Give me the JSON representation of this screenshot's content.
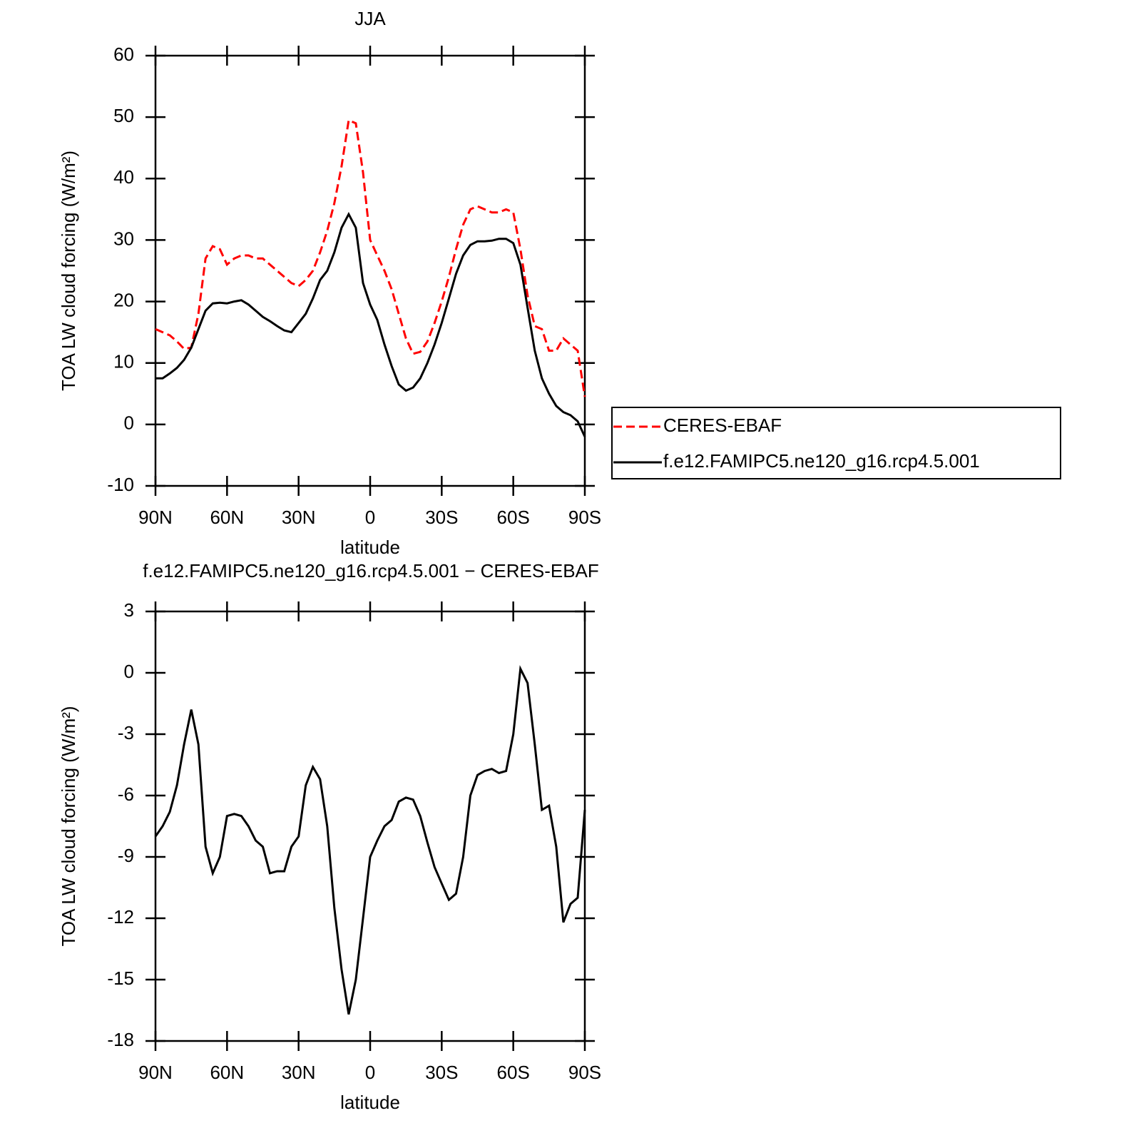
{
  "chart_data": [
    {
      "type": "line",
      "title": "JJA",
      "xlabel": "latitude",
      "ylabel": "TOA LW cloud forcing (W/m²)",
      "x": [
        90,
        87,
        84,
        81,
        78,
        75,
        72,
        69,
        66,
        63,
        60,
        57,
        54,
        51,
        48,
        45,
        42,
        39,
        36,
        33,
        30,
        27,
        24,
        21,
        18,
        15,
        12,
        9,
        6,
        3,
        0,
        -3,
        -6,
        -9,
        -12,
        -15,
        -18,
        -21,
        -24,
        -27,
        -30,
        -33,
        -36,
        -39,
        -42,
        -45,
        -48,
        -51,
        -54,
        -57,
        -60,
        -63,
        -66,
        -69,
        -72,
        -75,
        -78,
        -81,
        -84,
        -87,
        -90
      ],
      "xlim": [
        90,
        -90
      ],
      "xticks": [
        {
          "value": 90,
          "label": "90N"
        },
        {
          "value": 60,
          "label": "60N"
        },
        {
          "value": 30,
          "label": "30N"
        },
        0,
        {
          "value": -30,
          "label": "30S"
        },
        {
          "value": -60,
          "label": "60S"
        },
        {
          "value": -90,
          "label": "90S"
        }
      ],
      "ylim": [
        -10,
        60
      ],
      "yticks": [
        -10,
        0,
        10,
        20,
        30,
        40,
        50,
        60
      ],
      "legend": "outside right",
      "series": [
        {
          "name": "CERES-EBAF",
          "color": "#ff0000",
          "dash": "dashed",
          "values": [
            15.5,
            15,
            14.5,
            13.5,
            12.3,
            12.5,
            18,
            27,
            29,
            28.5,
            26,
            27,
            27.5,
            27.5,
            27,
            27,
            26,
            25,
            24,
            23,
            22.5,
            23.5,
            25,
            28,
            31.5,
            36,
            42,
            49.5,
            49,
            41,
            30,
            27.5,
            25,
            22,
            18,
            14,
            11.5,
            11.8,
            13.5,
            16.5,
            20,
            24,
            28.5,
            32.5,
            35,
            35.5,
            35,
            34.5,
            34.5,
            35,
            34.5,
            28.5,
            21,
            16,
            15.5,
            12,
            12,
            14,
            13,
            12,
            4.5
          ]
        },
        {
          "name": "f.e12.FAMIPC5.ne120_g16.rcp4.5.001",
          "color": "#000000",
          "dash": "solid",
          "values": [
            7.5,
            7.5,
            8.3,
            9.2,
            10.5,
            12.5,
            15.5,
            18.5,
            19.7,
            19.8,
            19.7,
            20,
            20.2,
            19.5,
            18.5,
            17.5,
            16.8,
            16,
            15.3,
            15,
            16.5,
            18,
            20.5,
            23.5,
            25,
            28,
            32,
            34.2,
            32,
            23,
            19.5,
            17,
            13,
            9.5,
            6.5,
            5.5,
            6,
            7.5,
            10,
            13,
            16.5,
            20.5,
            24.5,
            27.5,
            29.2,
            29.8,
            29.8,
            29.9,
            30.2,
            30.2,
            29.5,
            26,
            19,
            12,
            7.5,
            5,
            3,
            2,
            1.5,
            0.5,
            -2
          ]
        }
      ]
    },
    {
      "type": "line",
      "title": "f.e12.FAMIPC5.ne120_g16.rcp4.5.001 − CERES-EBAF",
      "xlabel": "latitude",
      "ylabel": "TOA LW cloud forcing (W/m²)",
      "x": [
        90,
        87,
        84,
        81,
        78,
        75,
        72,
        69,
        66,
        63,
        60,
        57,
        54,
        51,
        48,
        45,
        42,
        39,
        36,
        33,
        30,
        27,
        24,
        21,
        18,
        15,
        12,
        9,
        6,
        3,
        0,
        -3,
        -6,
        -9,
        -12,
        -15,
        -18,
        -21,
        -24,
        -27,
        -30,
        -33,
        -36,
        -39,
        -42,
        -45,
        -48,
        -51,
        -54,
        -57,
        -60,
        -63,
        -66,
        -69,
        -72,
        -75,
        -78,
        -81,
        -84,
        -87,
        -90
      ],
      "xlim": [
        90,
        -90
      ],
      "xticks": [
        {
          "value": 90,
          "label": "90N"
        },
        {
          "value": 60,
          "label": "60N"
        },
        {
          "value": 30,
          "label": "30N"
        },
        0,
        {
          "value": -30,
          "label": "30S"
        },
        {
          "value": -60,
          "label": "60S"
        },
        {
          "value": -90,
          "label": "90S"
        }
      ],
      "ylim": [
        -18,
        3
      ],
      "yticks": [
        -18,
        -15,
        -12,
        -9,
        -6,
        -3,
        0,
        3
      ],
      "series": [
        {
          "color": "#000000",
          "dash": "solid",
          "values": [
            -8,
            -7.5,
            -6.8,
            -5.5,
            -3.5,
            -1.8,
            -3.5,
            -8.5,
            -9.8,
            -9,
            -7,
            -6.9,
            -7,
            -7.5,
            -8.2,
            -8.5,
            -9.8,
            -9.7,
            -9.7,
            -8.5,
            -8,
            -5.5,
            -4.6,
            -5.2,
            -7.5,
            -11.5,
            -14.5,
            -16.7,
            -15,
            -12,
            -9,
            -8.2,
            -7.5,
            -7.2,
            -6.3,
            -6.1,
            -6.2,
            -7,
            -8.3,
            -9.5,
            -10.3,
            -11.1,
            -10.8,
            -9,
            -6,
            -5,
            -4.8,
            -4.7,
            -4.9,
            -4.8,
            -3,
            0.2,
            -0.5,
            -3.5,
            -6.7,
            -6.5,
            -8.5,
            -12.2,
            -11.3,
            -11,
            -6.7
          ]
        }
      ]
    }
  ]
}
